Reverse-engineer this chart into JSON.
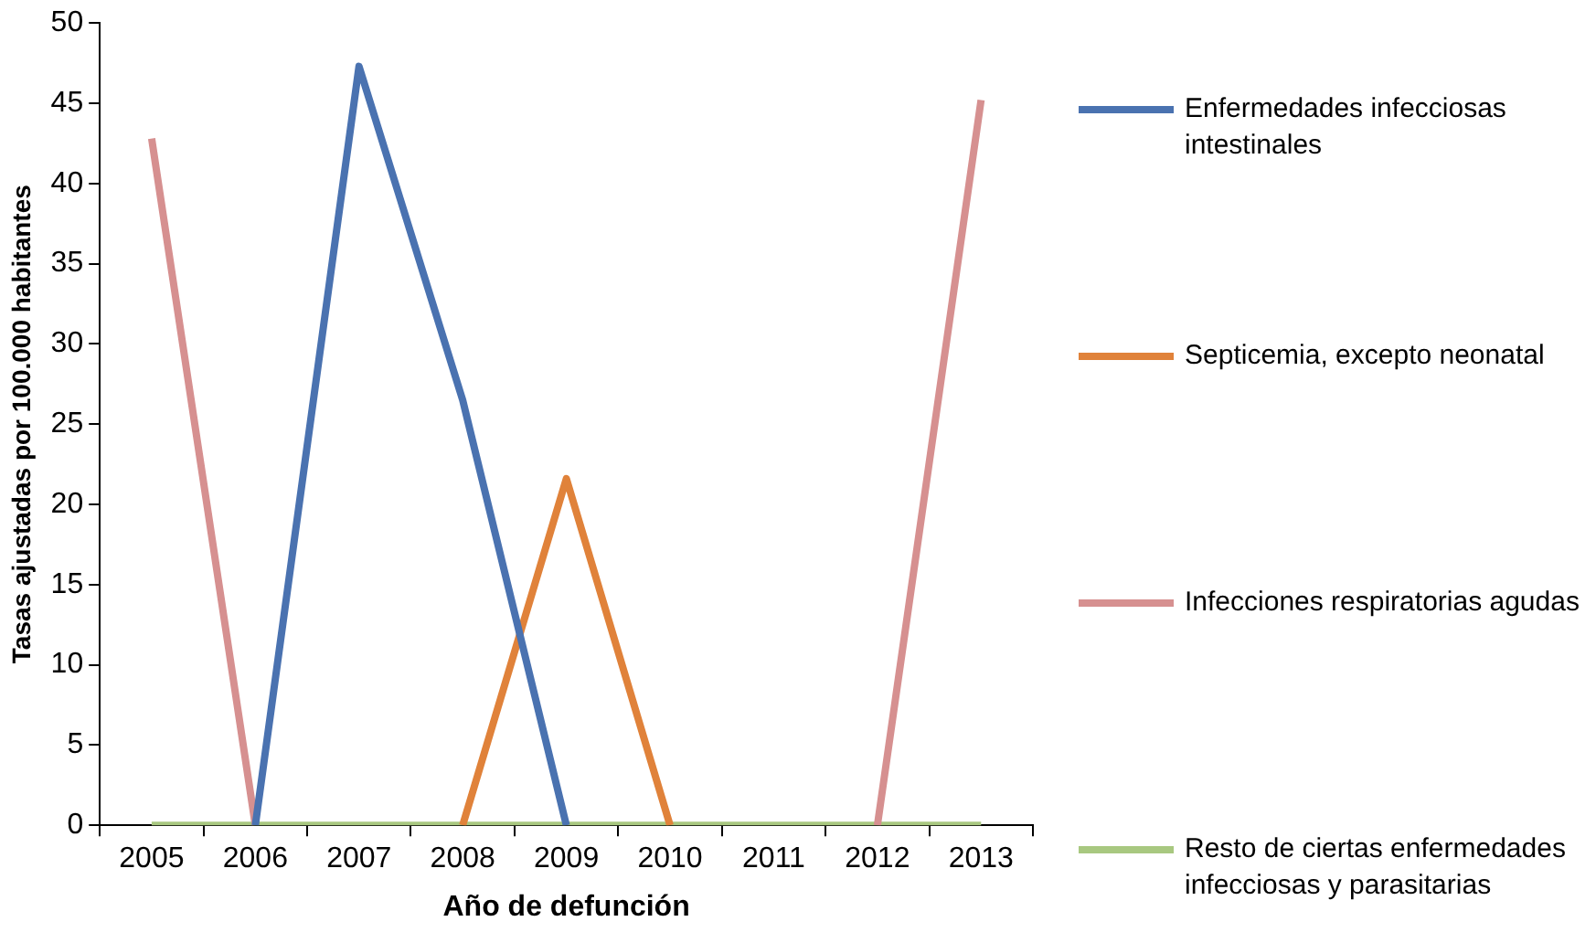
{
  "chart_data": {
    "type": "line",
    "xlabel": "Año de defunción",
    "ylabel": "Tasas ajustadas por 100.000 habitantes",
    "categories": [
      "2005",
      "2006",
      "2007",
      "2008",
      "2009",
      "2010",
      "2011",
      "2012",
      "2013"
    ],
    "ylim": [
      0,
      50
    ],
    "yticks": [
      0,
      5,
      10,
      15,
      20,
      25,
      30,
      35,
      40,
      45,
      50
    ],
    "grid": false,
    "legend": "right",
    "marker": "none",
    "series": [
      {
        "name": "Enfermedades infecciosas intestinales",
        "color": "#4a72b0",
        "values": [
          null,
          0,
          47.3,
          26.5,
          0,
          null,
          null,
          null,
          null
        ]
      },
      {
        "name": "Septicemia, excepto neonatal",
        "color": "#e0823a",
        "values": [
          null,
          null,
          null,
          0,
          21.6,
          0,
          null,
          null,
          null
        ]
      },
      {
        "name": "Infecciones respiratorias agudas",
        "color": "#d69090",
        "values": [
          42.8,
          0,
          null,
          null,
          null,
          null,
          null,
          0,
          45.2
        ]
      },
      {
        "name": "Resto de ciertas enfermedades infecciosas y parasitarias",
        "color": "#a8c880",
        "values": [
          0,
          0,
          0,
          0,
          0,
          0,
          0,
          0,
          0
        ]
      }
    ]
  }
}
